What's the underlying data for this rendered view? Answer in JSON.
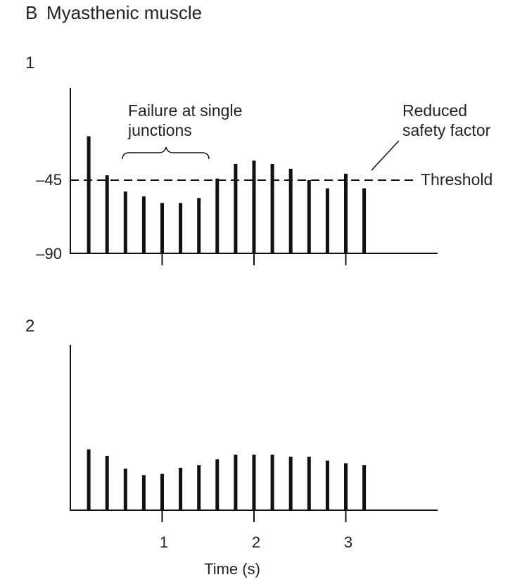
{
  "figure": {
    "panel_letter": "B",
    "title": "Myasthenic muscle"
  },
  "chart_data": [
    {
      "type": "bar",
      "panel": "1",
      "x": [
        0.2,
        0.4,
        0.6,
        0.8,
        1.0,
        1.2,
        1.4,
        1.6,
        1.8,
        2.0,
        2.2,
        2.4,
        2.6,
        2.8,
        3.0,
        3.2
      ],
      "values": [
        -18,
        -42,
        -52,
        -55,
        -59,
        -59,
        -56,
        -44,
        -35,
        -33,
        -35,
        -38,
        -45,
        -50,
        -41,
        -50
      ],
      "xlabel": "",
      "ylabel": "",
      "xticks": [
        1,
        2,
        3
      ],
      "yticks": [
        -45,
        -90
      ],
      "ytick_labels": [
        "–45",
        "–90"
      ],
      "ylim": [
        -90,
        0
      ],
      "xlim": [
        0,
        4
      ],
      "threshold": {
        "y": -45,
        "label": "Threshold"
      },
      "annotations": [
        {
          "text": [
            "Failure at single",
            "junctions"
          ]
        },
        {
          "text": [
            "Reduced",
            "safety factor"
          ]
        }
      ]
    },
    {
      "type": "bar",
      "panel": "2",
      "x": [
        0.2,
        0.4,
        0.6,
        0.8,
        1.0,
        1.2,
        1.4,
        1.6,
        1.8,
        2.0,
        2.2,
        2.4,
        2.6,
        2.8,
        3.0,
        3.2
      ],
      "values": [
        9.2,
        8.2,
        6.3,
        5.3,
        5.5,
        6.4,
        6.8,
        7.7,
        8.4,
        8.4,
        8.4,
        8.1,
        8.1,
        7.5,
        7.1,
        6.8
      ],
      "xlabel": "Time (s)",
      "ylabel": "",
      "xticks": [
        1,
        2,
        3
      ],
      "xtick_labels": [
        "1",
        "2",
        "3"
      ],
      "ylim": [
        0,
        25
      ],
      "xlim": [
        0,
        4
      ]
    }
  ]
}
